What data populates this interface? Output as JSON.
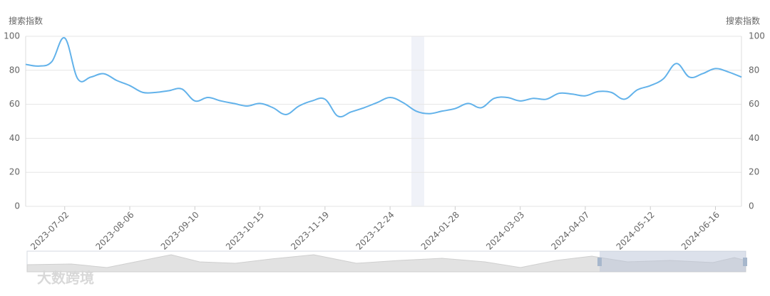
{
  "chart_data": {
    "type": "line",
    "y_label": "搜索指数",
    "y2_label": "搜索指数",
    "categories": [
      null,
      null,
      null,
      "2023-07-02",
      null,
      null,
      null,
      null,
      "2023-08-06",
      null,
      null,
      null,
      null,
      "2023-09-10",
      null,
      null,
      null,
      null,
      "2023-10-15",
      null,
      null,
      null,
      null,
      "2023-11-19",
      null,
      null,
      null,
      null,
      "2023-12-24",
      null,
      null,
      null,
      null,
      "2024-01-28",
      null,
      null,
      null,
      null,
      "2024-03-03",
      null,
      null,
      null,
      null,
      "2024-04-07",
      null,
      null,
      null,
      null,
      "2024-05-12",
      null,
      null,
      null,
      null,
      "2024-06-16",
      null,
      null
    ],
    "series": [
      {
        "color": "#62b2ea",
        "values": [
          83.5,
          82.5,
          85,
          99,
          75,
          76,
          78,
          74,
          71,
          67,
          67,
          68,
          69,
          62,
          64,
          62,
          60.5,
          59,
          60.5,
          58,
          54,
          59,
          62,
          63,
          53,
          55.5,
          58,
          61,
          64,
          61,
          56,
          54.5,
          56,
          57.5,
          60.5,
          58,
          63.5,
          64,
          62,
          63.5,
          63,
          66.5,
          66,
          65,
          67.5,
          67,
          63,
          68.5,
          71,
          75,
          84,
          76,
          78,
          81,
          79,
          76
        ]
      }
    ],
    "ylim": [
      0,
      100
    ],
    "yticks": [
      0,
      20,
      40,
      60,
      80,
      100
    ],
    "y2lim": [
      0,
      100
    ],
    "y2ticks": [
      0,
      20,
      40,
      60,
      80,
      100
    ],
    "grid": true
  },
  "watermark": "大数跨境"
}
